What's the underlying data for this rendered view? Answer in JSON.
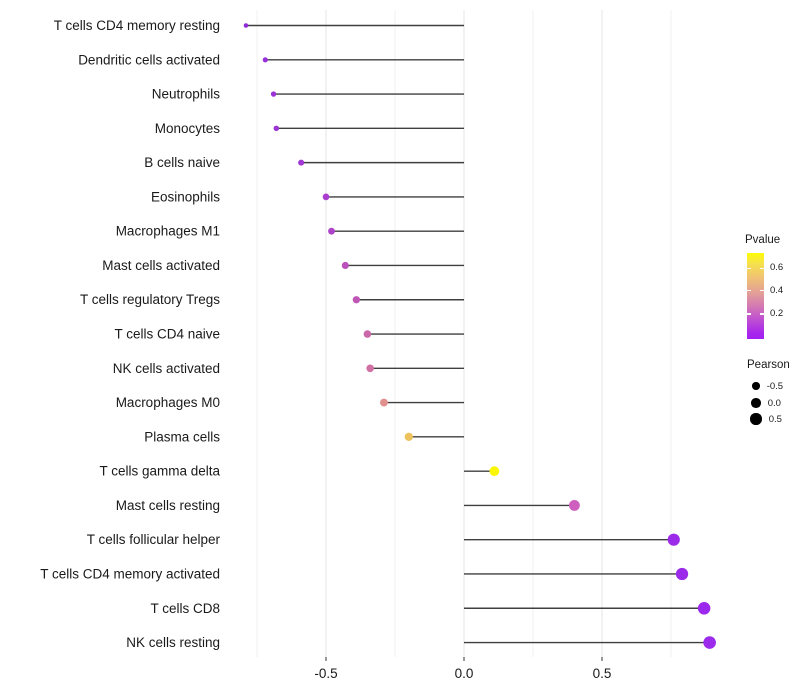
{
  "chart_data": {
    "type": "scatter",
    "variant": "lollipop",
    "title": "",
    "xlabel": "",
    "ylabel": "",
    "xlim": [
      -0.88,
      0.97
    ],
    "x_major_ticks": [
      -0.5,
      0.0,
      0.5
    ],
    "x_tick_labels": [
      "-0.5",
      "0.0",
      "0.5"
    ],
    "x_minor_ticks": [
      -0.75,
      -0.25,
      0.25,
      0.75
    ],
    "grid": "vertical-only",
    "stem_origin": 0.0,
    "categories": [
      "T cells CD4 memory resting",
      "Dendritic cells activated",
      "Neutrophils",
      "Monocytes",
      "B cells naive",
      "Eosinophils",
      "Macrophages M1",
      "Mast cells activated",
      "T cells regulatory  Tregs",
      "T cells CD4 naive",
      "NK cells activated",
      "Macrophages M0",
      "Plasma cells",
      "T cells gamma delta",
      "Mast cells resting",
      "T cells follicular helper",
      "T cells CD4 memory activated",
      "T cells CD8",
      "NK cells resting"
    ],
    "points": [
      {
        "label": "T cells CD4 memory resting",
        "pearson": -0.79,
        "pvalue": 0.06,
        "color": "#8F2BD6"
      },
      {
        "label": "Dendritic cells activated",
        "pearson": -0.72,
        "pvalue": 0.06,
        "color": "#9A30DC"
      },
      {
        "label": "Neutrophils",
        "pearson": -0.69,
        "pvalue": 0.07,
        "color": "#9C33D6"
      },
      {
        "label": "Monocytes",
        "pearson": -0.68,
        "pvalue": 0.07,
        "color": "#9D34D5"
      },
      {
        "label": "B cells naive",
        "pearson": -0.59,
        "pvalue": 0.09,
        "color": "#A138D4"
      },
      {
        "label": "Eosinophils",
        "pearson": -0.5,
        "pvalue": 0.11,
        "color": "#A93ECF"
      },
      {
        "label": "Macrophages M1",
        "pearson": -0.48,
        "pvalue": 0.13,
        "color": "#AD44C9"
      },
      {
        "label": "Mast cells activated",
        "pearson": -0.43,
        "pvalue": 0.17,
        "color": "#B950BC"
      },
      {
        "label": "T cells regulatory  Tregs",
        "pearson": -0.39,
        "pvalue": 0.19,
        "color": "#BF57B6"
      },
      {
        "label": "T cells CD4 naive",
        "pearson": -0.35,
        "pvalue": 0.23,
        "color": "#CB66A9"
      },
      {
        "label": "NK cells activated",
        "pearson": -0.34,
        "pvalue": 0.26,
        "color": "#D170A2"
      },
      {
        "label": "Macrophages M0",
        "pearson": -0.29,
        "pvalue": 0.36,
        "color": "#E0908D"
      },
      {
        "label": "Plasma cells",
        "pearson": -0.2,
        "pvalue": 0.52,
        "color": "#EDC25D"
      },
      {
        "label": "T cells gamma delta",
        "pearson": 0.11,
        "pvalue": 0.7,
        "color": "#FBF603"
      },
      {
        "label": "Mast cells resting",
        "pearson": 0.4,
        "pvalue": 0.24,
        "color": "#CE5FBE"
      },
      {
        "label": "T cells follicular helper",
        "pearson": 0.76,
        "pvalue": 0.02,
        "color": "#9B2BE8"
      },
      {
        "label": "T cells CD4 memory activated",
        "pearson": 0.79,
        "pvalue": 0.02,
        "color": "#9A29E9"
      },
      {
        "label": "T cells CD8",
        "pearson": 0.87,
        "pvalue": 0.01,
        "color": "#9B28EC"
      },
      {
        "label": "NK cells resting",
        "pearson": 0.89,
        "pvalue": 0.01,
        "color": "#9D2BEC"
      }
    ],
    "legend_pvalue": {
      "title": "Pvalue",
      "ticks": [
        "0.6",
        "0.4",
        "0.2"
      ],
      "range": [
        0.0,
        0.73
      ],
      "gradient_low_color": "#A121F0",
      "gradient_high_color": "#FDFB05",
      "position": "right"
    },
    "legend_pearson": {
      "title": "Pearson",
      "sizes": [
        "-0.5",
        "0.0",
        "0.5"
      ],
      "dot_color": "#000000",
      "position": "right"
    },
    "colors": {
      "stem": "#3F3F3F",
      "grid_major": "#E4E4E4",
      "grid_minor": "#F2F2F2",
      "axis_text": "#1A1A1A",
      "tick_mark": "#333333",
      "background": "#FFFFFF"
    }
  }
}
